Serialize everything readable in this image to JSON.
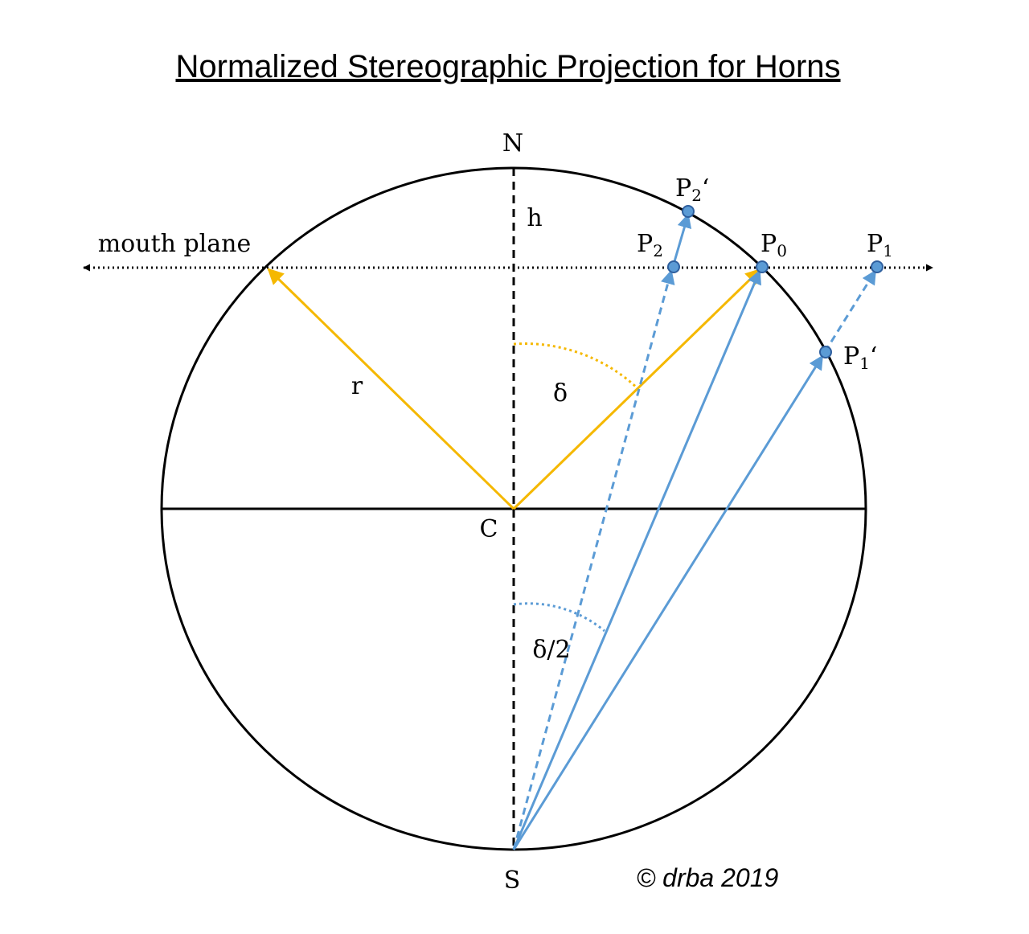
{
  "title": "Normalized Stereographic Projection for Horns",
  "labels": {
    "north": "N",
    "south": "S",
    "center": "C",
    "height": "h",
    "radius": "r",
    "delta": "δ",
    "half_delta": "δ/2",
    "mouth_plane": "mouth plane",
    "p0": "P",
    "p0_sub": "0",
    "p1": "P",
    "p1_sub": "1",
    "p2": "P",
    "p2_sub": "2",
    "p1_prime": "P",
    "p1_prime_sub": "1",
    "p1_prime_mark": "‘",
    "p2_prime": "P",
    "p2_prime_sub": "2",
    "p2_prime_mark": "‘"
  },
  "copyright": "© drba 2019",
  "colors": {
    "radius": "#f5b800",
    "projection": "#5b9bd5",
    "outline": "#000000"
  }
}
